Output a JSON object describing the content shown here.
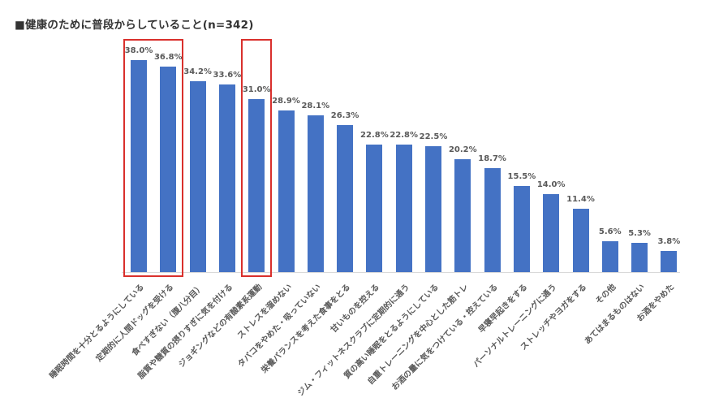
{
  "title": "■健康のために普段からしていること(n=342)",
  "colors": {
    "bar": "#4472c4",
    "highlight_box": "#d9302c",
    "label_text": "#595959"
  },
  "chart_data": {
    "type": "bar",
    "title": "■健康のために普段からしていること(n=342)",
    "xlabel": "",
    "ylabel": "",
    "ylim": [
      0,
      40
    ],
    "grid": false,
    "legend": "none",
    "value_suffix": "%",
    "categories": [
      "睡眠時間を十分とるようにしている",
      "定期的に人間ドッグを受ける",
      "食べすぎない（腹八分目）",
      "脂質や糖質の摂りすぎに気を付ける",
      "ジョギングなどの有酸素系運動",
      "ストレスを溜めない",
      "タバコをやめた・吸っていない",
      "栄養バランスを考えた食事をとる",
      "甘いものを控える",
      "ジム・フィットネスクラブに定期的に通う",
      "質の高い睡眠をとるようにしている",
      "自重トレーニングを中心とした筋トレ",
      "お酒の量に気をつけている・控えている",
      "早寝早起きをする",
      "パーソナルトレーニングに通う",
      "ストレッチやヨガをする",
      "その他",
      "あてはまるものはない",
      "お酒をやめた"
    ],
    "values": [
      38.0,
      36.8,
      34.2,
      33.6,
      31.0,
      28.9,
      28.1,
      26.3,
      22.8,
      22.8,
      22.5,
      20.2,
      18.7,
      15.5,
      14.0,
      11.4,
      5.6,
      5.3,
      3.8
    ],
    "value_labels": [
      "38.0%",
      "36.8%",
      "34.2%",
      "33.6%",
      "31.0%",
      "28.9%",
      "28.1%",
      "26.3%",
      "22.8%",
      "22.8%",
      "22.5%",
      "20.2%",
      "18.7%",
      "15.5%",
      "14.0%",
      "11.4%",
      "5.6%",
      "5.3%",
      "3.8%"
    ],
    "annotations": [
      {
        "type": "highlight-box",
        "covers": [
          "睡眠時間を十分とるようにしている",
          "定期的に人間ドッグを受ける"
        ],
        "color": "#d9302c"
      },
      {
        "type": "highlight-box",
        "covers": [
          "ジョギングなどの有酸素系運動"
        ],
        "color": "#d9302c"
      }
    ]
  }
}
